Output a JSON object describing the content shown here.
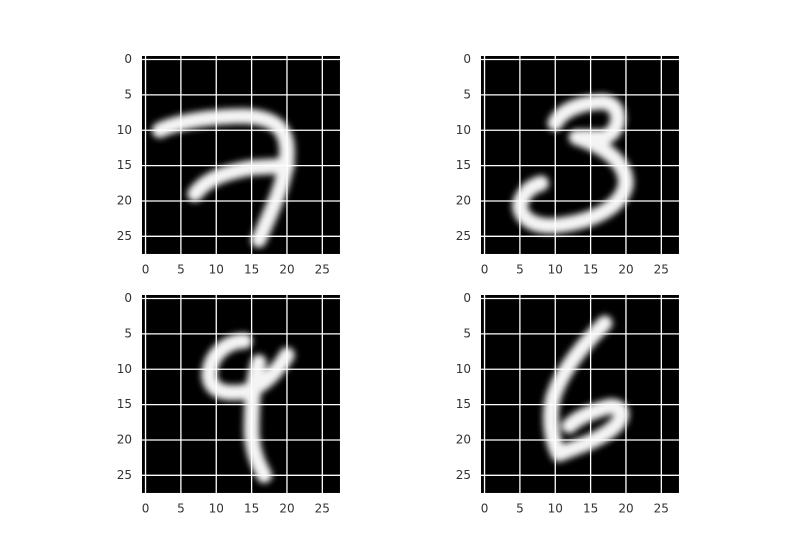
{
  "chart_data": [
    {
      "type": "image",
      "xlim": [
        -0.5,
        27.5
      ],
      "ylim": [
        27.5,
        -0.5
      ],
      "xticks": [
        0,
        5,
        10,
        15,
        20,
        25
      ],
      "yticks": [
        0,
        5,
        10,
        15,
        20,
        25
      ],
      "grid": true
    },
    {
      "type": "image",
      "xlim": [
        -0.5,
        27.5
      ],
      "ylim": [
        27.5,
        -0.5
      ],
      "xticks": [
        0,
        5,
        10,
        15,
        20,
        25
      ],
      "yticks": [
        0,
        5,
        10,
        15,
        20,
        25
      ],
      "grid": true
    },
    {
      "type": "image",
      "xlim": [
        -0.5,
        27.5
      ],
      "ylim": [
        27.5,
        -0.5
      ],
      "xticks": [
        0,
        5,
        10,
        15,
        20,
        25
      ],
      "yticks": [
        0,
        5,
        10,
        15,
        20,
        25
      ],
      "grid": true
    },
    {
      "type": "image",
      "xlim": [
        -0.5,
        27.5
      ],
      "ylim": [
        27.5,
        -0.5
      ],
      "xticks": [
        0,
        5,
        10,
        15,
        20,
        25
      ],
      "yticks": [
        0,
        5,
        10,
        15,
        20,
        25
      ],
      "grid": true
    }
  ]
}
